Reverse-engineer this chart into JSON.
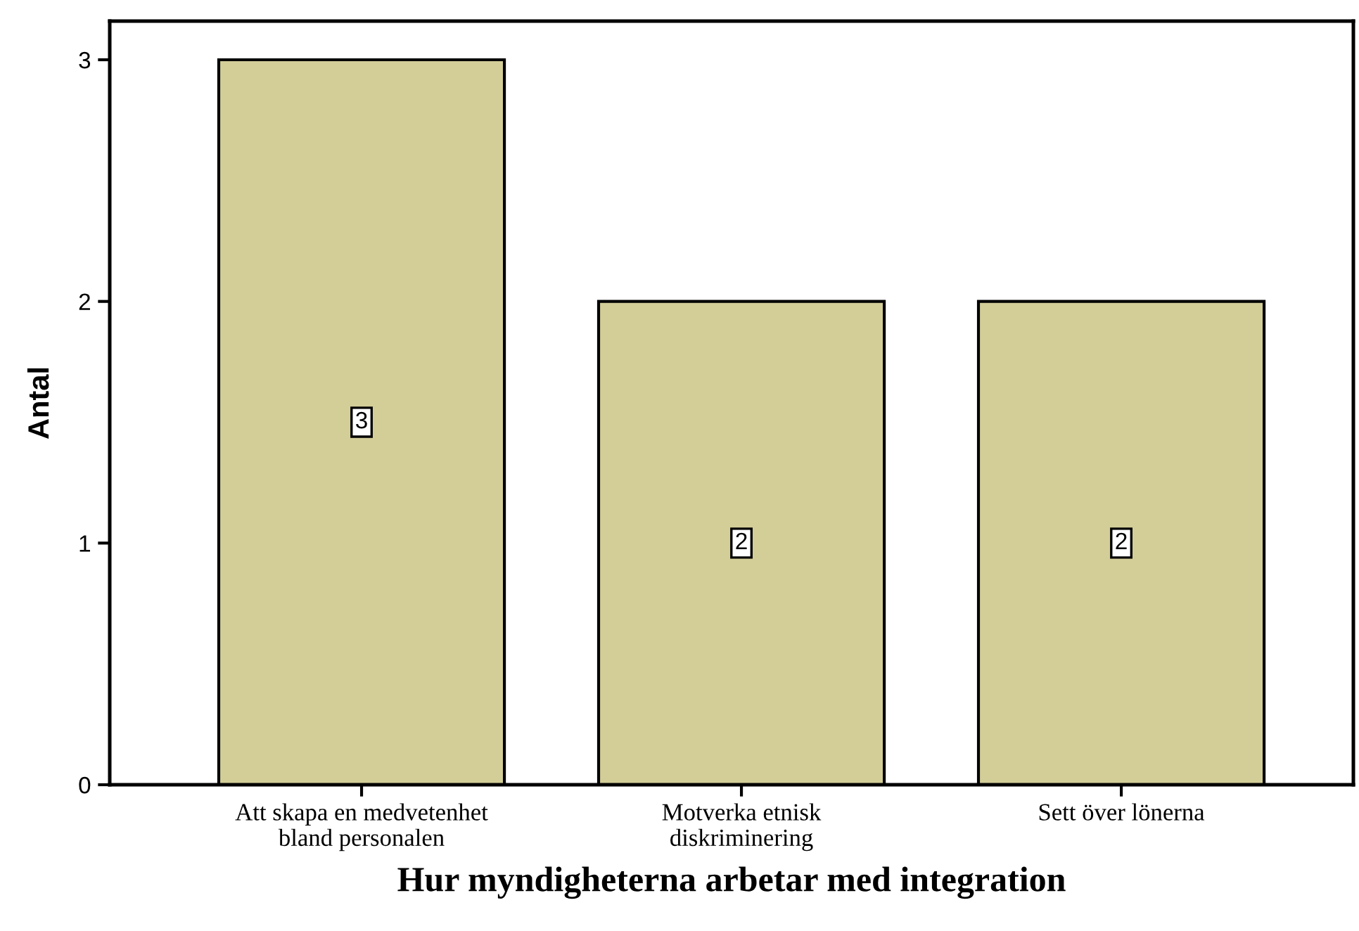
{
  "chart_data": {
    "type": "bar",
    "xlabel": "Hur myndigheterna arbetar med integration",
    "ylabel": "Antal",
    "categories": [
      "Att skapa en medvetenhet\nbland personalen",
      "Motverka etnisk\ndiskriminering",
      "Sett över lönerna"
    ],
    "values": [
      3,
      2,
      2
    ],
    "color": "#d3cd98",
    "ylim": [
      0,
      3.16
    ],
    "yticks": [
      0,
      1,
      2,
      3
    ],
    "data_labels": true,
    "grid": false,
    "legend": false
  }
}
